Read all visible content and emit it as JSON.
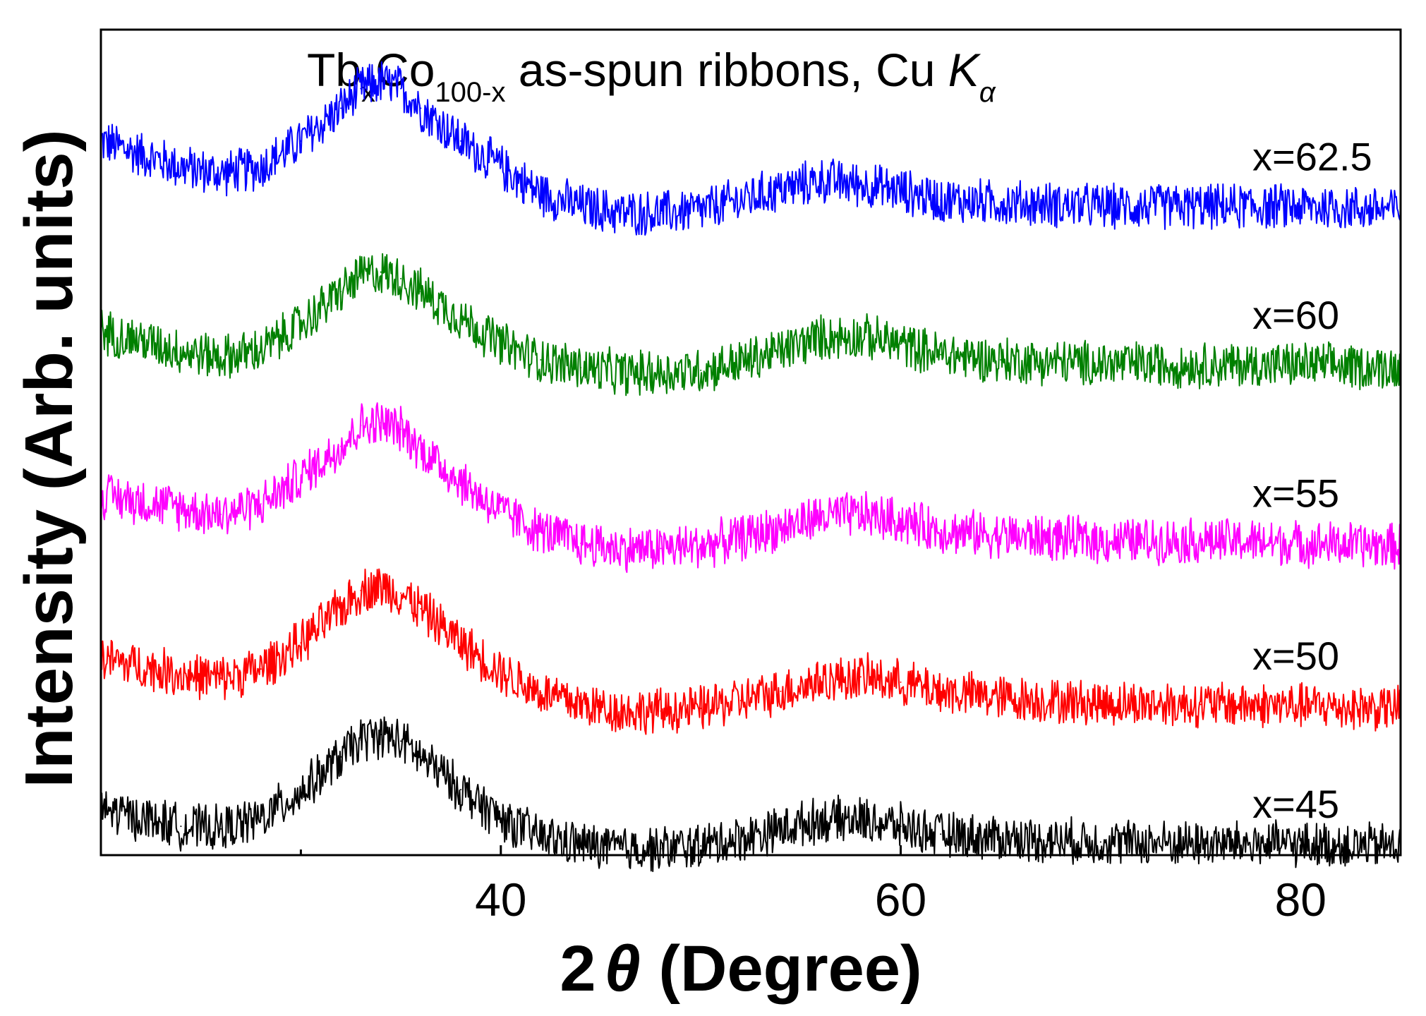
{
  "chart_data": {
    "type": "line",
    "title_parts": {
      "a": "Tb",
      "a_sub": "x",
      "b": "Co",
      "b_sub": "100-x",
      "c": " as-spun ribbons, Cu ",
      "d": "K",
      "d_sub": "α"
    },
    "xlabel": {
      "prefix": "2",
      "symbol": "θ",
      "suffix": " (Degree)"
    },
    "ylabel": "Intensity (Arb. units)",
    "xlim": [
      20,
      85
    ],
    "xticks": [
      40,
      60,
      80
    ],
    "ylim": [
      0,
      6.3
    ],
    "grid": false,
    "legend": "labels at right end of each trace",
    "noise_amplitude": 0.16,
    "series": [
      {
        "name": "x=62.5",
        "color": "#0000ff",
        "x": [
          20,
          24,
          26,
          28,
          30,
          32,
          33,
          34,
          35,
          36,
          38,
          40,
          42,
          44,
          46,
          48,
          50,
          52,
          54,
          56,
          58,
          60,
          62,
          65,
          70,
          75,
          80,
          85
        ],
        "y": [
          5.45,
          5.25,
          5.2,
          5.25,
          5.45,
          5.7,
          5.85,
          5.9,
          5.85,
          5.7,
          5.45,
          5.25,
          5.05,
          4.95,
          4.9,
          4.9,
          4.92,
          5.0,
          5.08,
          5.15,
          5.12,
          5.07,
          5.0,
          4.98,
          4.95,
          4.95,
          4.95,
          4.93
        ]
      },
      {
        "name": "x=60",
        "color": "#008000",
        "x": [
          20,
          24,
          26,
          28,
          30,
          32,
          33,
          34,
          35,
          36,
          38,
          40,
          42,
          44,
          46,
          48,
          50,
          52,
          54,
          56,
          58,
          60,
          62,
          65,
          70,
          75,
          80,
          85
        ],
        "y": [
          4.0,
          3.85,
          3.8,
          3.85,
          4.05,
          4.3,
          4.42,
          4.45,
          4.4,
          4.3,
          4.1,
          3.9,
          3.78,
          3.72,
          3.68,
          3.68,
          3.7,
          3.76,
          3.85,
          3.95,
          3.96,
          3.9,
          3.82,
          3.78,
          3.75,
          3.74,
          3.74,
          3.72
        ]
      },
      {
        "name": "x=55",
        "color": "#ff00ff",
        "x": [
          20,
          24,
          26,
          28,
          30,
          32,
          33,
          34,
          35,
          36,
          38,
          40,
          42,
          44,
          46,
          48,
          50,
          52,
          54,
          56,
          58,
          60,
          62,
          65,
          70,
          75,
          80,
          85
        ],
        "y": [
          2.75,
          2.65,
          2.6,
          2.68,
          2.88,
          3.12,
          3.28,
          3.3,
          3.25,
          3.1,
          2.85,
          2.62,
          2.47,
          2.38,
          2.34,
          2.34,
          2.36,
          2.42,
          2.5,
          2.58,
          2.6,
          2.55,
          2.48,
          2.44,
          2.4,
          2.4,
          2.38,
          2.36
        ]
      },
      {
        "name": "x=50",
        "color": "#ff0000",
        "x": [
          20,
          24,
          26,
          28,
          30,
          32,
          33,
          34,
          35,
          36,
          38,
          40,
          42,
          44,
          46,
          48,
          50,
          52,
          54,
          56,
          58,
          60,
          62,
          65,
          70,
          75,
          80,
          85
        ],
        "y": [
          1.5,
          1.38,
          1.35,
          1.42,
          1.62,
          1.88,
          2.02,
          2.05,
          2.0,
          1.88,
          1.62,
          1.4,
          1.24,
          1.15,
          1.1,
          1.1,
          1.12,
          1.18,
          1.25,
          1.33,
          1.36,
          1.32,
          1.25,
          1.2,
          1.16,
          1.15,
          1.14,
          1.12
        ]
      },
      {
        "name": "x=45",
        "color": "#000000",
        "x": [
          20,
          24,
          26,
          28,
          30,
          32,
          33,
          34,
          35,
          36,
          38,
          40,
          42,
          44,
          46,
          48,
          50,
          52,
          54,
          56,
          58,
          60,
          62,
          65,
          70,
          75,
          80,
          85
        ],
        "y": [
          0.35,
          0.22,
          0.2,
          0.28,
          0.48,
          0.75,
          0.88,
          0.92,
          0.87,
          0.75,
          0.5,
          0.28,
          0.14,
          0.08,
          0.05,
          0.05,
          0.07,
          0.13,
          0.2,
          0.27,
          0.27,
          0.22,
          0.16,
          0.13,
          0.1,
          0.09,
          0.08,
          0.07
        ]
      }
    ]
  }
}
